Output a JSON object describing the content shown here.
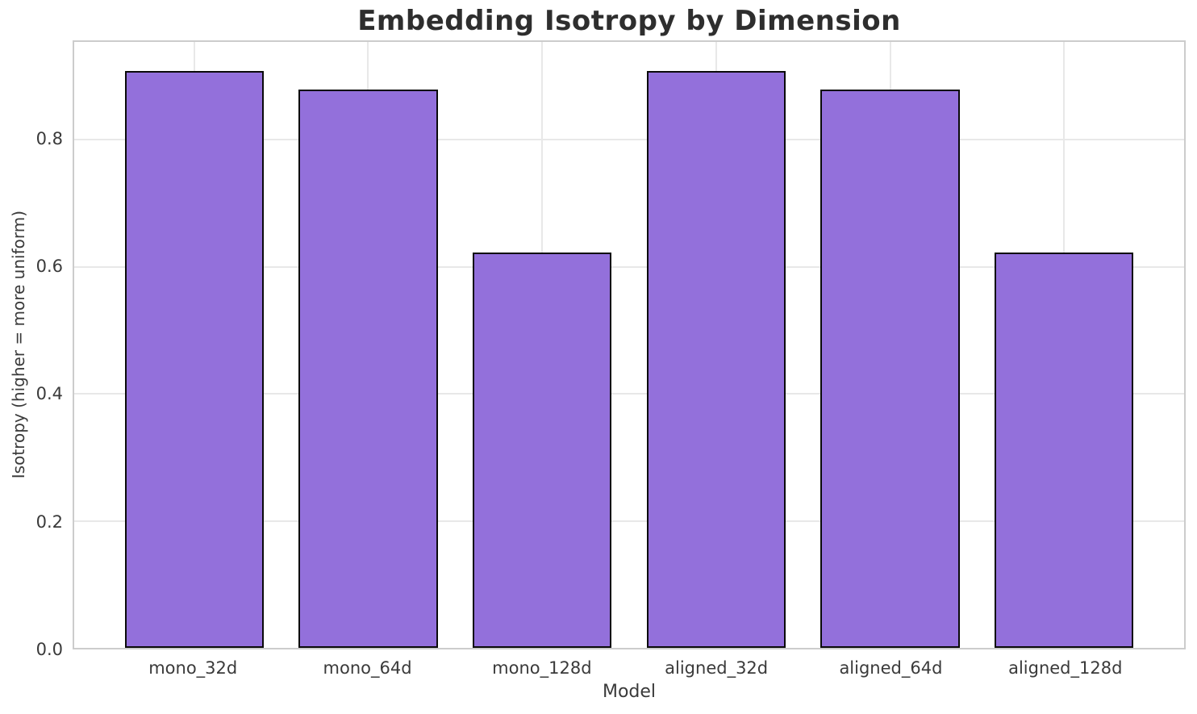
{
  "chart_data": {
    "type": "bar",
    "title": "Embedding Isotropy by Dimension",
    "xlabel": "Model",
    "ylabel": "Isotropy (higher = more uniform)",
    "categories": [
      "mono_32d",
      "mono_64d",
      "mono_128d",
      "aligned_32d",
      "aligned_64d",
      "aligned_128d"
    ],
    "values": [
      0.908,
      0.879,
      0.622,
      0.908,
      0.879,
      0.622
    ],
    "yticks": [
      0.0,
      0.2,
      0.4,
      0.6,
      0.8
    ],
    "ytick_labels": [
      "0.0",
      "0.2",
      "0.4",
      "0.6",
      "0.8"
    ],
    "ylim": [
      0,
      0.954
    ],
    "grid": true,
    "legend": "none",
    "colors": {
      "bar_fill": "#9370DB",
      "bar_edge": "#0a0a0a",
      "gridline": "#e8e8e8",
      "spine": "#cccccc",
      "title_text": "#2e2e2e",
      "label_text": "#3a3a3a",
      "background": "#ffffff"
    }
  }
}
